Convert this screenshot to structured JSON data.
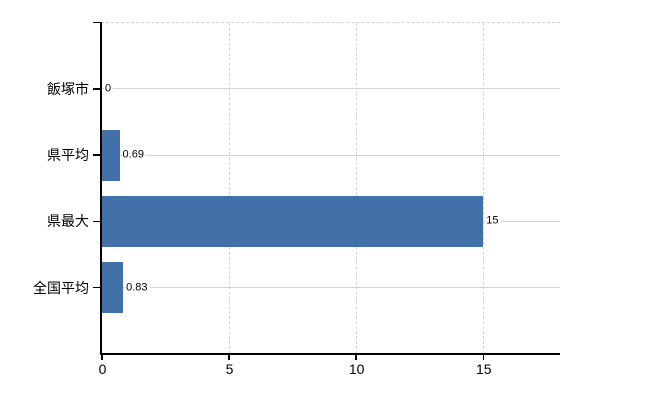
{
  "chart_data": {
    "type": "bar",
    "orientation": "horizontal",
    "title": "",
    "xlabel": "",
    "ylabel": "",
    "categories": [
      "飯塚市",
      "県平均",
      "県最大",
      "全国平均"
    ],
    "values": [
      0,
      0.69,
      15,
      0.83
    ],
    "value_labels": [
      "0",
      "0.69",
      "15",
      "0.83"
    ],
    "xlim": [
      0,
      18
    ],
    "xticks": [
      0,
      5,
      10,
      15
    ],
    "xtick_labels": [
      "0",
      "5",
      "10",
      "15"
    ],
    "grid": "on",
    "legend": "none",
    "colors": {
      "bar": "#4270a8",
      "grid": "#d3d3d3",
      "axis": "#000000",
      "text": "#000000",
      "background": "#ffffff"
    }
  }
}
